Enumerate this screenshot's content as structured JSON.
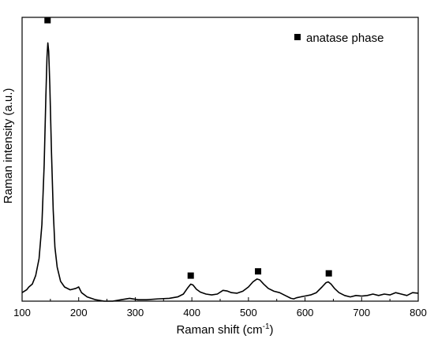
{
  "chart_data": {
    "type": "line",
    "title": "",
    "xlabel": "Raman shift (cm",
    "xlabel_superscript": "-1",
    "xlabel_suffix": ")",
    "ylabel": "Raman intensity (a.u.)",
    "xlim": [
      100,
      800
    ],
    "ylim": [
      0,
      1.0
    ],
    "x_ticks": [
      100,
      200,
      300,
      400,
      500,
      600,
      700,
      800
    ],
    "y_ticks_labeled": false,
    "grid": false,
    "legend": {
      "placement": "top-right",
      "entries": [
        {
          "marker": "filled-square",
          "label": "anatase phase"
        }
      ]
    },
    "series": [
      {
        "color": "#000000",
        "points": [
          [
            100,
            0.03
          ],
          [
            108,
            0.04
          ],
          [
            112,
            0.05
          ],
          [
            118,
            0.06
          ],
          [
            124,
            0.09
          ],
          [
            130,
            0.15
          ],
          [
            135,
            0.27
          ],
          [
            139,
            0.48
          ],
          [
            142,
            0.72
          ],
          [
            144,
            0.86
          ],
          [
            145.5,
            0.91
          ],
          [
            147,
            0.88
          ],
          [
            149,
            0.76
          ],
          [
            152,
            0.52
          ],
          [
            155,
            0.32
          ],
          [
            158,
            0.19
          ],
          [
            162,
            0.12
          ],
          [
            168,
            0.07
          ],
          [
            175,
            0.05
          ],
          [
            185,
            0.04
          ],
          [
            195,
            0.045
          ],
          [
            200,
            0.05
          ],
          [
            205,
            0.03
          ],
          [
            215,
            0.015
          ],
          [
            230,
            0.005
          ],
          [
            245,
            0.0
          ],
          [
            260,
            0.0
          ],
          [
            275,
            0.005
          ],
          [
            290,
            0.01
          ],
          [
            305,
            0.005
          ],
          [
            320,
            0.005
          ],
          [
            340,
            0.008
          ],
          [
            360,
            0.01
          ],
          [
            375,
            0.015
          ],
          [
            385,
            0.025
          ],
          [
            392,
            0.045
          ],
          [
            398,
            0.06
          ],
          [
            402,
            0.057
          ],
          [
            408,
            0.042
          ],
          [
            415,
            0.032
          ],
          [
            425,
            0.025
          ],
          [
            435,
            0.022
          ],
          [
            445,
            0.025
          ],
          [
            455,
            0.038
          ],
          [
            462,
            0.036
          ],
          [
            470,
            0.03
          ],
          [
            480,
            0.028
          ],
          [
            490,
            0.035
          ],
          [
            500,
            0.05
          ],
          [
            508,
            0.068
          ],
          [
            515,
            0.078
          ],
          [
            520,
            0.075
          ],
          [
            527,
            0.06
          ],
          [
            535,
            0.045
          ],
          [
            545,
            0.035
          ],
          [
            555,
            0.03
          ],
          [
            565,
            0.02
          ],
          [
            575,
            0.01
          ],
          [
            580,
            0.008
          ],
          [
            585,
            0.012
          ],
          [
            592,
            0.015
          ],
          [
            600,
            0.018
          ],
          [
            610,
            0.022
          ],
          [
            620,
            0.03
          ],
          [
            630,
            0.05
          ],
          [
            637,
            0.065
          ],
          [
            641,
            0.068
          ],
          [
            646,
            0.06
          ],
          [
            652,
            0.045
          ],
          [
            660,
            0.03
          ],
          [
            670,
            0.02
          ],
          [
            680,
            0.015
          ],
          [
            690,
            0.02
          ],
          [
            700,
            0.018
          ],
          [
            710,
            0.02
          ],
          [
            720,
            0.025
          ],
          [
            730,
            0.02
          ],
          [
            740,
            0.025
          ],
          [
            750,
            0.022
          ],
          [
            760,
            0.03
          ],
          [
            770,
            0.025
          ],
          [
            780,
            0.02
          ],
          [
            790,
            0.03
          ],
          [
            800,
            0.028
          ]
        ]
      }
    ],
    "markers": [
      {
        "x": 145,
        "y": 0.99,
        "label": "anatase phase"
      },
      {
        "x": 398,
        "y": 0.09,
        "label": "anatase phase"
      },
      {
        "x": 517,
        "y": 0.105,
        "label": "anatase phase"
      },
      {
        "x": 642,
        "y": 0.098,
        "label": "anatase phase"
      }
    ]
  }
}
